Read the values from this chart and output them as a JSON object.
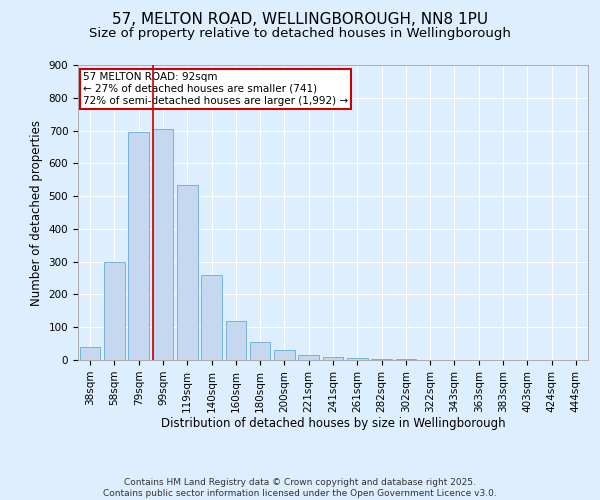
{
  "title_line1": "57, MELTON ROAD, WELLINGBOROUGH, NN8 1PU",
  "title_line2": "Size of property relative to detached houses in Wellingborough",
  "xlabel": "Distribution of detached houses by size in Wellingborough",
  "ylabel": "Number of detached properties",
  "footer_line1": "Contains HM Land Registry data © Crown copyright and database right 2025.",
  "footer_line2": "Contains public sector information licensed under the Open Government Licence v3.0.",
  "categories": [
    "38sqm",
    "58sqm",
    "79sqm",
    "99sqm",
    "119sqm",
    "140sqm",
    "160sqm",
    "180sqm",
    "200sqm",
    "221sqm",
    "241sqm",
    "261sqm",
    "282sqm",
    "302sqm",
    "322sqm",
    "343sqm",
    "363sqm",
    "383sqm",
    "403sqm",
    "424sqm",
    "444sqm"
  ],
  "values": [
    40,
    300,
    695,
    705,
    535,
    260,
    120,
    55,
    30,
    15,
    8,
    5,
    3,
    2,
    1,
    1,
    0,
    0,
    0,
    0,
    0
  ],
  "bar_color": "#c5d8f0",
  "bar_edge_color": "#6aabd2",
  "background_color": "#ddeeff",
  "grid_color": "#ffffff",
  "annotation_text": "57 MELTON ROAD: 92sqm\n← 27% of detached houses are smaller (741)\n72% of semi-detached houses are larger (1,992) →",
  "annotation_box_color": "#ffffff",
  "annotation_border_color": "#cc0000",
  "red_line_x": 2.57,
  "ylim": [
    0,
    900
  ],
  "yticks": [
    0,
    100,
    200,
    300,
    400,
    500,
    600,
    700,
    800,
    900
  ],
  "title_fontsize": 11,
  "subtitle_fontsize": 9.5,
  "axis_label_fontsize": 8.5,
  "tick_fontsize": 7.5,
  "annotation_fontsize": 7.5,
  "footer_fontsize": 6.5
}
